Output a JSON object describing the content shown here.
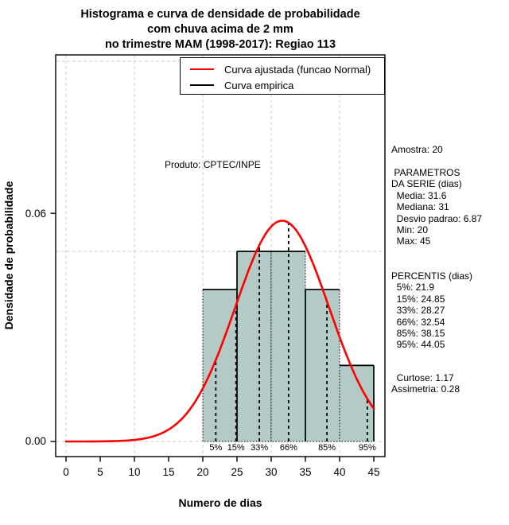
{
  "title": {
    "line1": "Histograma e curva de densidade de probabilidade",
    "line2": "com chuva acima de 2 mm",
    "line3": "no trimestre MAM (1998-2017): Regiao 113"
  },
  "legend": [
    {
      "label": "Curva ajustada (funcao Normal)",
      "color": "#ff0000"
    },
    {
      "label": "Curva empirica",
      "color": "#000000"
    }
  ],
  "annotation": "Produto: CPTEC/INPE",
  "axes": {
    "x": {
      "label": "Numero de dias"
    },
    "y": {
      "label": "Densidade de probabilidade"
    }
  },
  "side_panel": {
    "amostra": "Amostra: 20",
    "parametros": [
      " PARAMETROS",
      "DA SERIE (dias)",
      "  Media: 31.6",
      "  Mediana: 31",
      "  Desvio padrao: 6.87",
      "  Min: 20",
      "  Max: 45"
    ],
    "percentis": [
      "PERCENTIS (dias)",
      "  5%: 21.9",
      "  15%: 24.85",
      "  33%: 28.27",
      "  66%: 32.54",
      "  85%: 38.15",
      "  95%: 44.05"
    ],
    "momentos": [
      "  Curtose: 1.17",
      "Assimetria: 0.28"
    ]
  },
  "colors": {
    "bar_fill": "#b4cac6",
    "bar_border": "#000000",
    "grid": "#cccccc",
    "curve_fitted": "#ff0000",
    "curve_empirical": "#000000",
    "background": "#ffffff"
  },
  "chart_data": {
    "type": "bar",
    "subtype": "histogram-with-density",
    "title": "Histograma e curva de densidade de probabilidade com chuva acima de 2 mm no trimestre MAM (1998-2017): Regiao 113",
    "xlabel": "Numero de dias",
    "ylabel": "Densidade de probabilidade",
    "xlim": [
      0,
      45
    ],
    "ylim": [
      0,
      0.1
    ],
    "sample_size": 20,
    "bins": {
      "breaks": [
        20,
        25,
        30,
        35,
        40,
        45
      ],
      "densities": [
        0.04,
        0.05,
        0.05,
        0.04,
        0.02
      ],
      "counts": [
        4,
        5,
        5,
        4,
        2
      ]
    },
    "normal_fit": {
      "mean": 31.6,
      "sd": 6.87,
      "peak_density": 0.058
    },
    "empirical_verticals": [
      {
        "x": 25,
        "density": 0.05
      },
      {
        "x": 35,
        "density": 0.04
      },
      {
        "x": 45,
        "density": 0.02
      }
    ],
    "percentiles": [
      {
        "label": "5%",
        "value": 21.9
      },
      {
        "label": "15%",
        "value": 24.85
      },
      {
        "label": "33%",
        "value": 28.27
      },
      {
        "label": "66%",
        "value": 32.54
      },
      {
        "label": "85%",
        "value": 38.15
      },
      {
        "label": "95%",
        "value": 44.05
      }
    ],
    "x_ticks": [
      {
        "value": 0,
        "label": "0"
      },
      {
        "value": 5,
        "label": "5"
      },
      {
        "value": 10,
        "label": "10"
      },
      {
        "value": 15,
        "label": "15"
      },
      {
        "value": 20,
        "label": "20"
      },
      {
        "value": 25,
        "label": "25"
      },
      {
        "value": 30,
        "label": "30"
      },
      {
        "value": 35,
        "label": "35"
      },
      {
        "value": 40,
        "label": "40"
      },
      {
        "value": 45,
        "label": "45"
      }
    ],
    "y_ticks": [
      {
        "value": 0,
        "label": "0.00"
      },
      {
        "value": 0.06,
        "label": "0.06"
      }
    ],
    "gridlines": {
      "x": [
        0,
        10,
        20,
        30,
        40
      ],
      "y": [
        0,
        0.05,
        0.1
      ]
    },
    "stats_text": [
      "Amostra: 20",
      "Media: 31.6",
      "Mediana: 31",
      "Desvio padrao: 6.87",
      "Min: 20",
      "Max: 45",
      "Curtose: 1.17",
      "Assimetria: 0.28"
    ]
  }
}
